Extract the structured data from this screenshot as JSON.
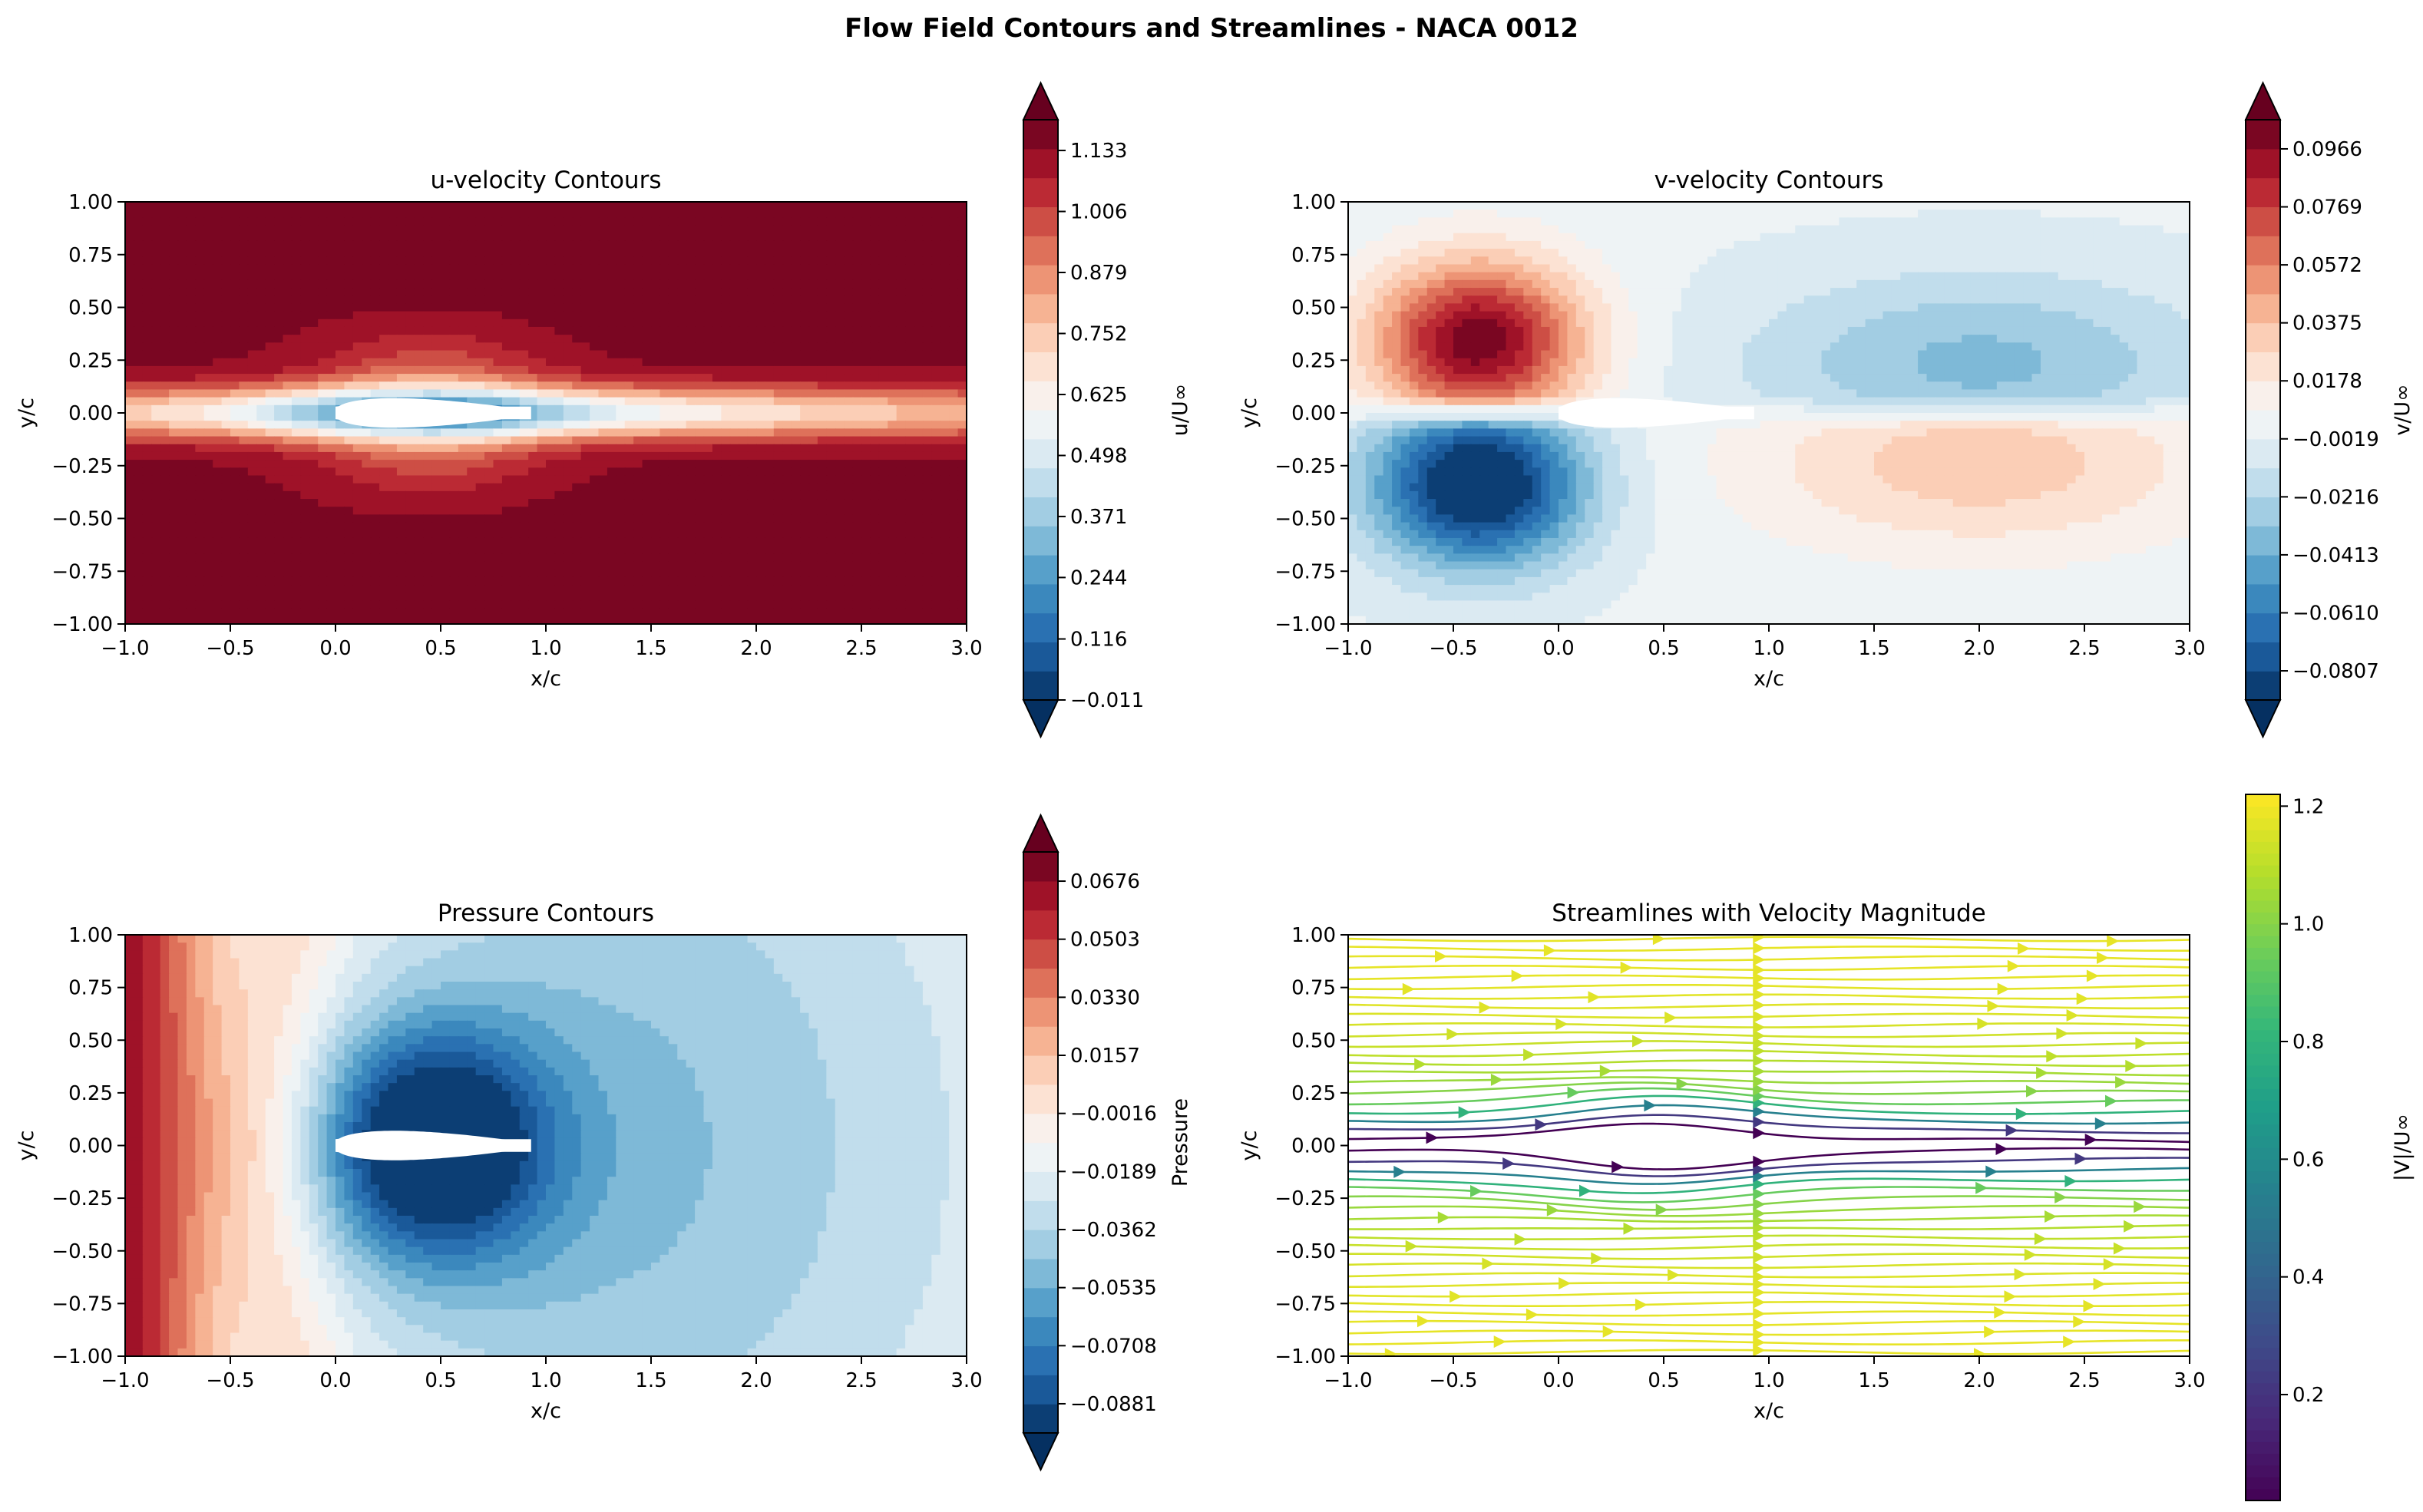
{
  "figure": {
    "title": "Flow Field Contours and Streamlines - NACA 0012"
  },
  "chart_data": [
    {
      "id": "u",
      "type": "heatmap",
      "title": "u-velocity Contours",
      "xlabel": "x/c",
      "ylabel": "y/c",
      "xlim": [
        -1.0,
        3.0
      ],
      "ylim": [
        -1.0,
        1.0
      ],
      "xticks": [
        "−1.0",
        "−0.5",
        "0.0",
        "0.5",
        "1.0",
        "1.5",
        "2.0",
        "2.5",
        "3.0"
      ],
      "yticks": [
        "1.00",
        "0.75",
        "0.50",
        "0.25",
        "0.00",
        "−0.25",
        "−0.50",
        "−0.75",
        "−1.00"
      ],
      "field": "u",
      "colormap": "RdBu_r",
      "colorbar": {
        "label": "u/U∞",
        "range": [
          -0.011,
          1.197
        ],
        "extend": "both",
        "ticks": [
          "1.133",
          "1.006",
          "0.879",
          "0.752",
          "0.625",
          "0.498",
          "0.371",
          "0.244",
          "0.116",
          "−0.011"
        ],
        "tick_values": [
          1.133,
          1.006,
          0.879,
          0.752,
          0.625,
          0.498,
          0.371,
          0.244,
          0.116,
          -0.011
        ]
      }
    },
    {
      "id": "v",
      "type": "heatmap",
      "title": "v-velocity Contours",
      "xlabel": "x/c",
      "ylabel": "y/c",
      "xlim": [
        -1.0,
        3.0
      ],
      "ylim": [
        -1.0,
        1.0
      ],
      "xticks": [
        "−1.0",
        "−0.5",
        "0.0",
        "0.5",
        "1.0",
        "1.5",
        "2.0",
        "2.5",
        "3.0"
      ],
      "yticks": [
        "1.00",
        "0.75",
        "0.50",
        "0.25",
        "0.00",
        "−0.25",
        "−0.50",
        "−0.75",
        "−1.00"
      ],
      "field": "v",
      "colormap": "RdBu_r",
      "colorbar": {
        "label": "v/U∞",
        "range": [
          -0.0906,
          0.1065
        ],
        "extend": "both",
        "ticks": [
          "0.0966",
          "0.0769",
          "0.0572",
          "0.0375",
          "0.0178",
          "−0.0019",
          "−0.0216",
          "−0.0413",
          "−0.0610",
          "−0.0807"
        ],
        "tick_values": [
          0.0966,
          0.0769,
          0.0572,
          0.0375,
          0.0178,
          -0.0019,
          -0.0216,
          -0.0413,
          -0.061,
          -0.0807
        ]
      }
    },
    {
      "id": "p",
      "type": "heatmap",
      "title": "Pressure Contours",
      "xlabel": "x/c",
      "ylabel": "y/c",
      "xlim": [
        -1.0,
        3.0
      ],
      "ylim": [
        -1.0,
        1.0
      ],
      "xticks": [
        "−1.0",
        "−0.5",
        "0.0",
        "0.5",
        "1.0",
        "1.5",
        "2.0",
        "2.5",
        "3.0"
      ],
      "yticks": [
        "1.00",
        "0.75",
        "0.50",
        "0.25",
        "0.00",
        "−0.25",
        "−0.50",
        "−0.75",
        "−1.00"
      ],
      "field": "p",
      "colormap": "RdBu_r",
      "colorbar": {
        "label": "Pressure",
        "range": [
          -0.0968,
          0.0763
        ],
        "extend": "both",
        "ticks": [
          "0.0676",
          "0.0503",
          "0.0330",
          "0.0157",
          "−0.0016",
          "−0.0189",
          "−0.0362",
          "−0.0535",
          "−0.0708",
          "−0.0881"
        ],
        "tick_values": [
          0.0676,
          0.0503,
          0.033,
          0.0157,
          -0.0016,
          -0.0189,
          -0.0362,
          -0.0535,
          -0.0708,
          -0.0881
        ]
      }
    },
    {
      "id": "s",
      "type": "streamline",
      "title": "Streamlines with Velocity Magnitude",
      "xlabel": "x/c",
      "ylabel": "y/c",
      "xlim": [
        -1.0,
        3.0
      ],
      "ylim": [
        -1.0,
        1.0
      ],
      "xticks": [
        "−1.0",
        "−0.5",
        "0.0",
        "0.5",
        "1.0",
        "1.5",
        "2.0",
        "2.5",
        "3.0"
      ],
      "yticks": [
        "1.00",
        "0.75",
        "0.50",
        "0.25",
        "0.00",
        "−0.25",
        "−0.50",
        "−0.75",
        "−1.00"
      ],
      "field": "stream",
      "colormap": "viridis",
      "colorbar": {
        "label": "|V|/U∞",
        "range": [
          0.02,
          1.22
        ],
        "extend": "neither",
        "ticks": [
          "1.2",
          "1.0",
          "0.8",
          "0.6",
          "0.4",
          "0.2"
        ],
        "tick_values": [
          1.2,
          1.0,
          0.8,
          0.6,
          0.4,
          0.2
        ]
      }
    }
  ],
  "colors": {
    "airfoil": "#ffffff",
    "axes": "#000000"
  }
}
